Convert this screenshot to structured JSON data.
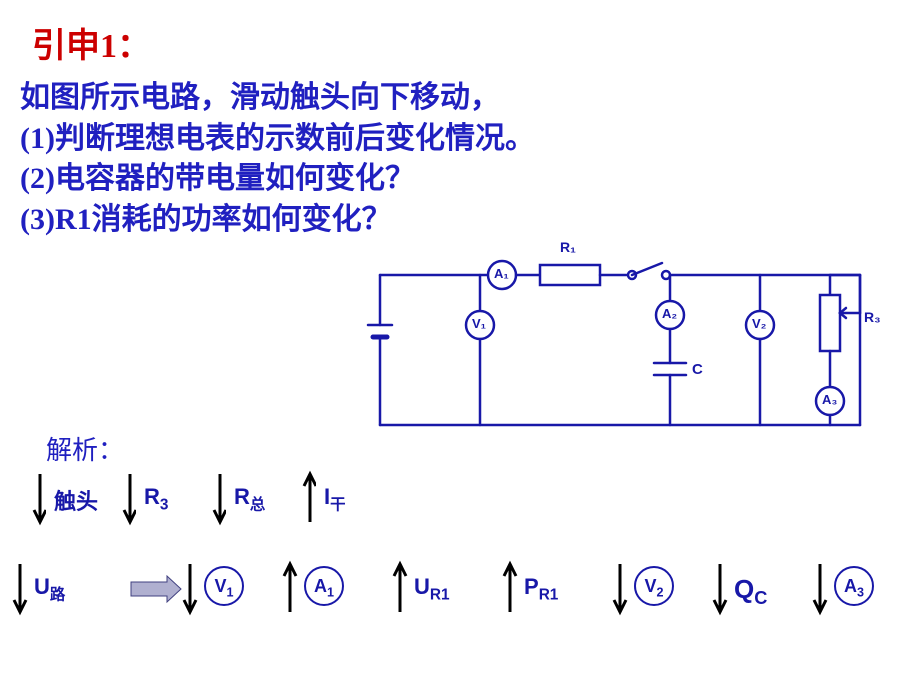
{
  "title": "引申1：",
  "prompt": {
    "l1": "如图所示电路，滑动触头向下移动，",
    "l2": "(1)判断理想电表的示数前后变化情况。",
    "l3": "(2)电容器的带电量如何变化？",
    "l4": "(3)R1消耗的功率如何变化？"
  },
  "circuit": {
    "stroke": "#1818a8",
    "stroke_width": 2.5,
    "bg": "#ffffff",
    "labels": {
      "R1": "R₁",
      "A1": "A₁",
      "A2": "A₂",
      "A3": "A₃",
      "V1": "V₁",
      "V2": "V₂",
      "C": "C",
      "R3": "R₃"
    }
  },
  "analysis_label": "解析：",
  "flow": {
    "arrow_color": "#000000",
    "row1": [
      {
        "name": "slider",
        "label": "触头",
        "type": "text",
        "dir": "down"
      },
      {
        "name": "R3",
        "label": "R<span class='sub'>3</span>",
        "type": "text",
        "dir": "down"
      },
      {
        "name": "Rtotal",
        "label": "R<span class='sub'>总</span>",
        "type": "text",
        "dir": "down"
      },
      {
        "name": "Imain",
        "label": "I<span class='sub'>干</span>",
        "type": "text",
        "dir": "up"
      }
    ],
    "row2": [
      {
        "name": "Uext",
        "label": "U<span class='sub'>路</span>",
        "type": "text",
        "dir": "down"
      },
      {
        "name": "implies",
        "type": "harrow"
      },
      {
        "name": "V1",
        "label": "V<span class='sub'>1</span>",
        "type": "circle",
        "dir": "down"
      },
      {
        "name": "A1",
        "label": "A<span class='sub'>1</span>",
        "type": "circle",
        "dir": "up"
      },
      {
        "name": "UR1",
        "label": "U<span class='sub'>R1</span>",
        "type": "text",
        "dir": "up"
      },
      {
        "name": "PR1",
        "label": "P<span class='sub'>R1</span>",
        "type": "text",
        "dir": "up"
      },
      {
        "name": "V2",
        "label": "V<span class='sub'>2</span>",
        "type": "circle",
        "dir": "down"
      },
      {
        "name": "QC",
        "label": "Q<span class='sub'>C</span>",
        "type": "text",
        "dir": "down"
      },
      {
        "name": "A3",
        "label": "A<span class='sub'>3</span>",
        "type": "circle",
        "dir": "down"
      }
    ],
    "row1_positions": [
      60,
      150,
      240,
      330
    ],
    "row2_positions": [
      40,
      135,
      210,
      310,
      420,
      530,
      640,
      740,
      840
    ]
  },
  "style": {
    "title_color": "#cc0000",
    "text_color": "#2020c0",
    "circuit_color": "#1818a8",
    "arrow_color": "#000000",
    "title_fontsize": 34,
    "prompt_fontsize": 30,
    "analysis_fontsize": 26,
    "flow_fontsize": 22
  }
}
